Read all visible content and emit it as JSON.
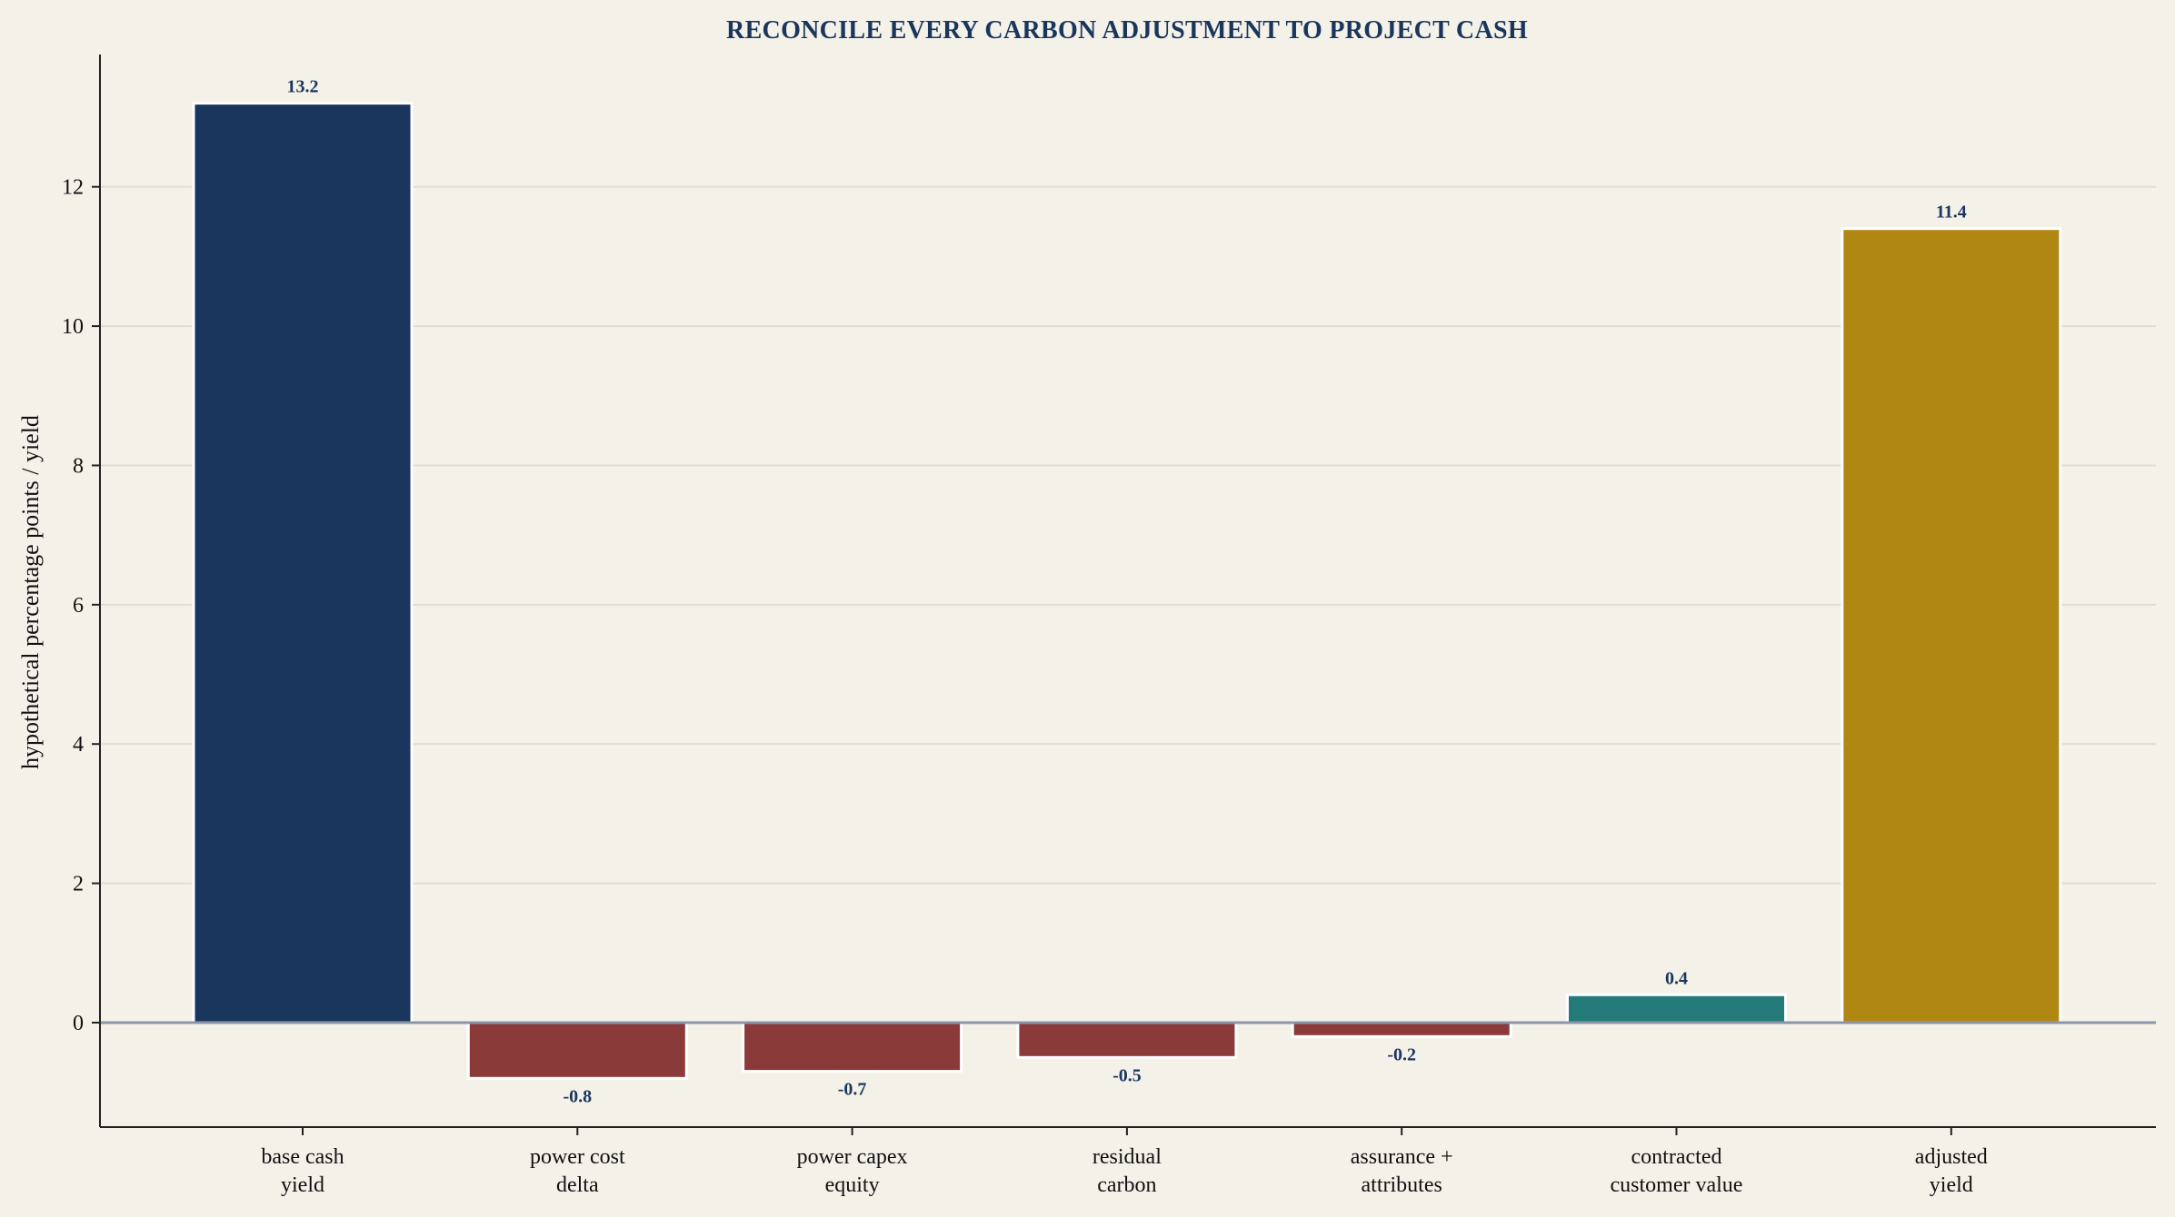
{
  "chart_data": {
    "type": "bar",
    "title": "RECONCILE EVERY CARBON ADJUSTMENT TO PROJECT CASH",
    "xlabel": "",
    "ylabel": "hypothetical percentage points / yield",
    "categories": [
      [
        "base cash",
        "yield"
      ],
      [
        "power cost",
        "delta"
      ],
      [
        "power capex",
        "equity"
      ],
      [
        "residual",
        "carbon"
      ],
      [
        "assurance +",
        "attributes"
      ],
      [
        "contracted",
        "customer value"
      ],
      [
        "adjusted",
        "yield"
      ]
    ],
    "values": [
      13.2,
      -0.8,
      -0.7,
      -0.5,
      -0.2,
      0.4,
      11.4
    ],
    "data_labels": [
      "13.2",
      "-0.8",
      "-0.7",
      "-0.5",
      "-0.2",
      "0.4",
      "11.4"
    ],
    "colors": [
      "#1b365d",
      "#8b3a3a",
      "#8b3a3a",
      "#8b3a3a",
      "#8b3a3a",
      "#237a78",
      "#b08712"
    ],
    "ylim": [
      -1.5,
      13.9
    ],
    "yticks": [
      0,
      2,
      4,
      6,
      8,
      10,
      12
    ],
    "grid": "y",
    "legend": "none"
  }
}
